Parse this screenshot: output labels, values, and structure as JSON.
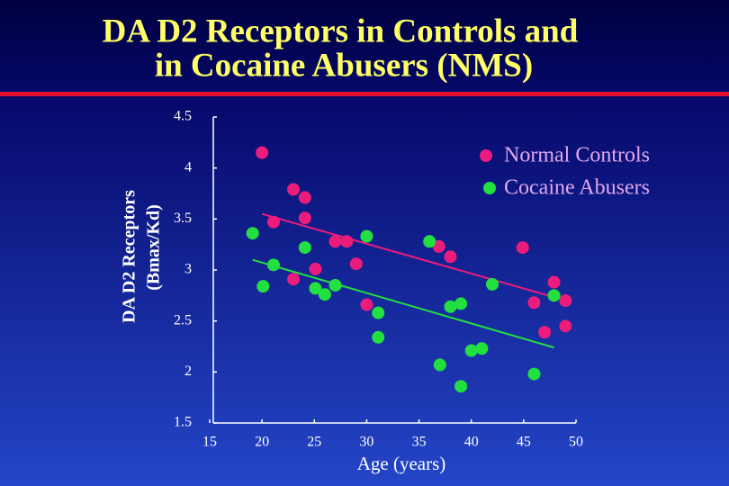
{
  "chart_data": {
    "type": "scatter",
    "title": [
      "DA D2 Receptors in Controls and",
      "in Cocaine Abusers (NMS)"
    ],
    "x_label": "Age (years)",
    "y_label": [
      "DA D2 Receptors",
      "(Bmax/Kd)"
    ],
    "xlim": [
      15,
      50
    ],
    "xticks": [
      15,
      20,
      25,
      30,
      35,
      40,
      45,
      50
    ],
    "ylim": [
      1.5,
      4.5
    ],
    "yticks": [
      1.5,
      2,
      2.5,
      3,
      3.5,
      4,
      4.5
    ],
    "legend": "upper right",
    "series": [
      {
        "name": "Normal Controls",
        "color": "#ec1c7c",
        "x": [
          20,
          21.1,
          23,
          24.1,
          24.1,
          25.1,
          23,
          27,
          28.1,
          29,
          30,
          36.9,
          38,
          44.9,
          46,
          47,
          47.9,
          49,
          49
        ],
        "values": [
          4.15,
          3.47,
          3.79,
          3.71,
          3.51,
          3.01,
          2.91,
          3.28,
          3.28,
          3.06,
          2.66,
          3.23,
          3.13,
          3.22,
          2.68,
          2.39,
          2.88,
          2.7,
          2.45
        ],
        "fit": {
          "x": [
            20,
            49.4
          ],
          "values": [
            3.55,
            2.69
          ]
        }
      },
      {
        "name": "Cocaine Abusers",
        "color": "#22e040",
        "x": [
          19.1,
          21.1,
          20.1,
          24.1,
          25.1,
          26,
          27,
          30,
          31.1,
          31.1,
          36,
          37,
          38,
          39,
          39,
          40,
          41,
          42,
          46,
          47.9
        ],
        "values": [
          3.36,
          3.05,
          2.84,
          3.22,
          2.82,
          2.76,
          2.85,
          3.33,
          2.58,
          2.34,
          3.28,
          2.07,
          2.64,
          2.67,
          1.86,
          2.21,
          2.23,
          2.86,
          1.98,
          2.75
        ],
        "fit": {
          "x": [
            19.1,
            47.9
          ],
          "values": [
            3.1,
            2.24
          ]
        }
      }
    ]
  }
}
